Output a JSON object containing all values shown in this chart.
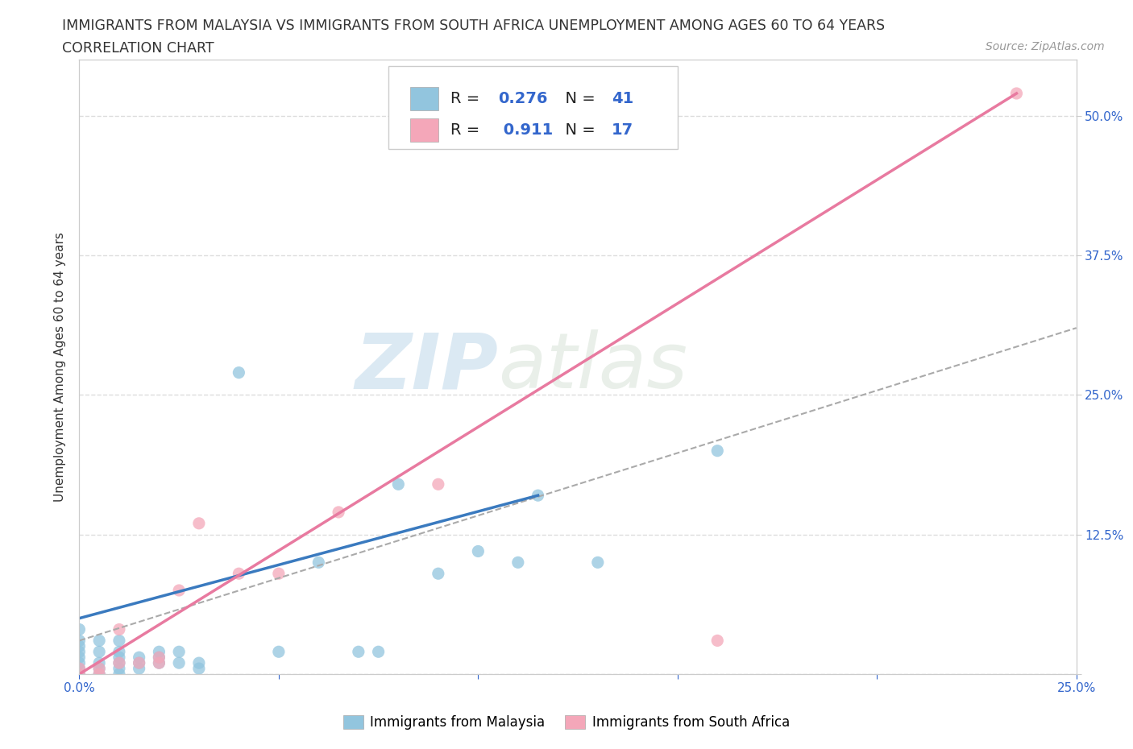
{
  "title_line1": "IMMIGRANTS FROM MALAYSIA VS IMMIGRANTS FROM SOUTH AFRICA UNEMPLOYMENT AMONG AGES 60 TO 64 YEARS",
  "title_line2": "CORRELATION CHART",
  "source_text": "Source: ZipAtlas.com",
  "ylabel": "Unemployment Among Ages 60 to 64 years",
  "xlim": [
    0.0,
    0.25
  ],
  "ylim": [
    0.0,
    0.55
  ],
  "x_ticks": [
    0.0,
    0.05,
    0.1,
    0.15,
    0.2,
    0.25
  ],
  "x_tick_labels": [
    "0.0%",
    "",
    "",
    "",
    "",
    "25.0%"
  ],
  "y_ticks": [
    0.0,
    0.125,
    0.25,
    0.375,
    0.5
  ],
  "y_tick_labels": [
    "",
    "12.5%",
    "25.0%",
    "37.5%",
    "50.0%"
  ],
  "malaysia_color": "#92c5de",
  "south_africa_color": "#f4a7b9",
  "malaysia_line_color": "#3a7abf",
  "south_africa_line_color": "#e87aa0",
  "malaysia_R": 0.276,
  "malaysia_N": 41,
  "south_africa_R": 0.911,
  "south_africa_N": 17,
  "legend_label_malaysia": "Immigrants from Malaysia",
  "legend_label_south_africa": "Immigrants from South Africa",
  "watermark_zip": "ZIP",
  "watermark_atlas": "atlas",
  "malaysia_scatter_x": [
    0.0,
    0.0,
    0.0,
    0.0,
    0.0,
    0.0,
    0.0,
    0.0,
    0.005,
    0.005,
    0.005,
    0.005,
    0.005,
    0.01,
    0.01,
    0.01,
    0.01,
    0.01,
    0.01,
    0.015,
    0.015,
    0.015,
    0.02,
    0.02,
    0.02,
    0.025,
    0.025,
    0.03,
    0.03,
    0.04,
    0.05,
    0.06,
    0.07,
    0.075,
    0.08,
    0.09,
    0.1,
    0.11,
    0.115,
    0.13,
    0.16
  ],
  "malaysia_scatter_y": [
    0.0,
    0.005,
    0.01,
    0.015,
    0.02,
    0.025,
    0.03,
    0.04,
    0.0,
    0.005,
    0.01,
    0.02,
    0.03,
    0.0,
    0.005,
    0.01,
    0.015,
    0.02,
    0.03,
    0.005,
    0.01,
    0.015,
    0.01,
    0.015,
    0.02,
    0.01,
    0.02,
    0.005,
    0.01,
    0.27,
    0.02,
    0.1,
    0.02,
    0.02,
    0.17,
    0.09,
    0.11,
    0.1,
    0.16,
    0.1,
    0.2
  ],
  "south_africa_scatter_x": [
    0.0,
    0.0,
    0.005,
    0.005,
    0.01,
    0.01,
    0.015,
    0.02,
    0.02,
    0.025,
    0.03,
    0.04,
    0.05,
    0.065,
    0.09,
    0.16,
    0.235
  ],
  "south_africa_scatter_y": [
    0.0,
    0.005,
    0.0,
    0.005,
    0.01,
    0.04,
    0.01,
    0.01,
    0.015,
    0.075,
    0.135,
    0.09,
    0.09,
    0.145,
    0.17,
    0.03,
    0.52
  ],
  "malaysia_trend_x": [
    0.0,
    0.115
  ],
  "malaysia_trend_y": [
    0.05,
    0.16
  ],
  "dashed_trend_x": [
    0.0,
    0.25
  ],
  "dashed_trend_y": [
    0.03,
    0.31
  ],
  "south_africa_trend_x": [
    0.0,
    0.235
  ],
  "south_africa_trend_y": [
    0.0,
    0.52
  ],
  "background_color": "#ffffff",
  "grid_color": "#dddddd",
  "title_fontsize": 12.5,
  "axis_label_fontsize": 11,
  "tick_fontsize": 11,
  "legend_fontsize": 14
}
